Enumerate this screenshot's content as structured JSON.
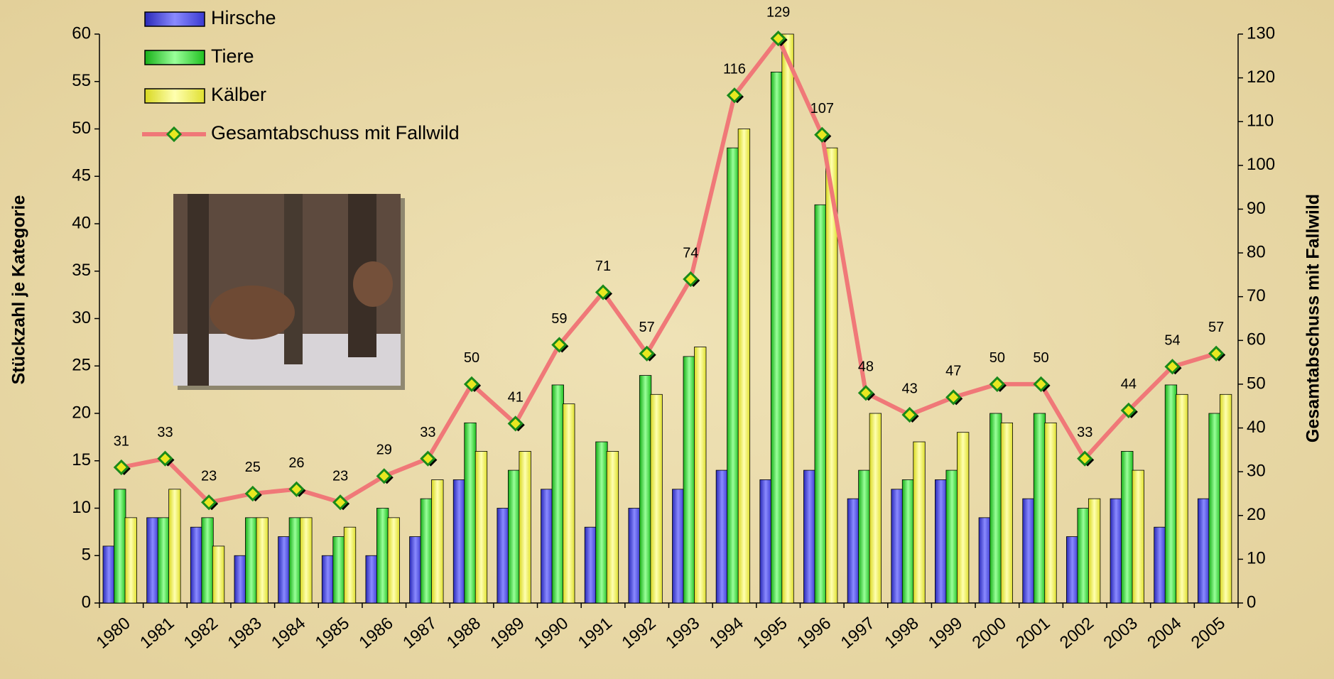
{
  "chart_data": {
    "type": "bar",
    "categories": [
      "1980",
      "1981",
      "1982",
      "1983",
      "1984",
      "1985",
      "1986",
      "1987",
      "1988",
      "1989",
      "1990",
      "1991",
      "1992",
      "1993",
      "1994",
      "1995",
      "1996",
      "1997",
      "1998",
      "1999",
      "2000",
      "2001",
      "2002",
      "2003",
      "2004",
      "2005"
    ],
    "series": [
      {
        "name": "Hirsche",
        "color": "#5a5af0",
        "values": [
          6,
          9,
          8,
          5,
          7,
          5,
          5,
          7,
          13,
          10,
          12,
          8,
          10,
          12,
          14,
          13,
          14,
          11,
          12,
          13,
          9,
          11,
          7,
          11,
          8,
          11
        ]
      },
      {
        "name": "Tiere",
        "color": "#4ee84e",
        "values": [
          12,
          9,
          9,
          9,
          9,
          7,
          10,
          11,
          19,
          14,
          23,
          17,
          24,
          26,
          48,
          56,
          42,
          14,
          13,
          14,
          20,
          20,
          10,
          16,
          23,
          20
        ]
      },
      {
        "name": "Kälber",
        "color": "#f5f56a",
        "values": [
          9,
          12,
          6,
          9,
          9,
          8,
          9,
          13,
          16,
          16,
          21,
          16,
          22,
          27,
          50,
          60,
          48,
          20,
          17,
          18,
          19,
          19,
          11,
          14,
          22,
          22
        ]
      },
      {
        "name": "Gesamtabschuss mit Fallwild",
        "color": "#f07878",
        "type": "line",
        "axis": "y2",
        "values": [
          31,
          33,
          23,
          25,
          26,
          23,
          29,
          33,
          50,
          41,
          59,
          71,
          57,
          74,
          116,
          129,
          107,
          48,
          43,
          47,
          50,
          50,
          33,
          44,
          54,
          57
        ]
      }
    ],
    "y_label": "Stückzahl je Kategorie",
    "y2_label": "Gesamtabschuss mit Fallwild",
    "ylim": [
      0,
      60
    ],
    "yticks": [
      0,
      5,
      10,
      15,
      20,
      25,
      30,
      35,
      40,
      45,
      50,
      55,
      60
    ],
    "y2lim": [
      0,
      130
    ],
    "y2ticks": [
      0,
      10,
      20,
      30,
      40,
      50,
      60,
      70,
      80,
      90,
      100,
      110,
      120,
      130
    ]
  }
}
